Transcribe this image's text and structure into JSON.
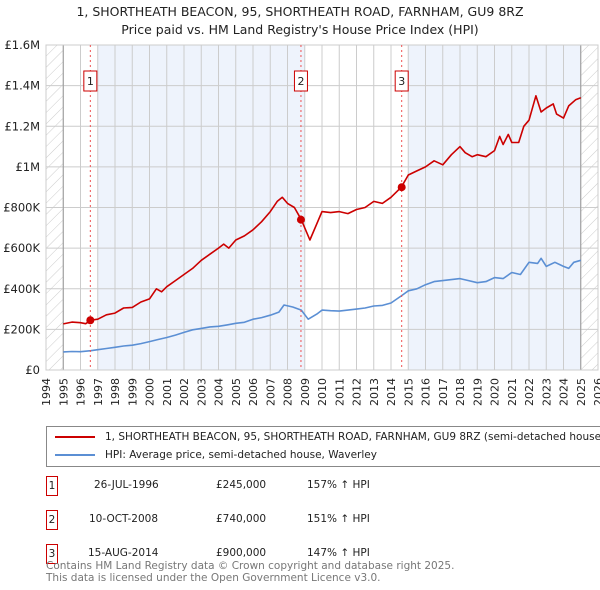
{
  "title": "1, SHORTHEATH BEACON, 95, SHORTHEATH ROAD, FARNHAM, GU9 8RZ",
  "subtitle": "Price paid vs. HM Land Registry's House Price Index (HPI)",
  "colors": {
    "property": "#cc0000",
    "hpi": "#5b8fd4",
    "band": "#eef3fc"
  },
  "chart_data": {
    "type": "line",
    "title": "Price paid vs. HM Land Registry's House Price Index (HPI)",
    "xlim": [
      1994,
      2026
    ],
    "ylim": [
      0,
      1600000
    ],
    "y_ticks": [
      {
        "v": 0,
        "label": "£0"
      },
      {
        "v": 200000,
        "label": "£200K"
      },
      {
        "v": 400000,
        "label": "£400K"
      },
      {
        "v": 600000,
        "label": "£600K"
      },
      {
        "v": 800000,
        "label": "£800K"
      },
      {
        "v": 1000000,
        "label": "£1M"
      },
      {
        "v": 1200000,
        "label": "£1.2M"
      },
      {
        "v": 1400000,
        "label": "£1.4M"
      },
      {
        "v": 1600000,
        "label": "£1.6M"
      }
    ],
    "x_ticks": [
      "1994",
      "1995",
      "1996",
      "1997",
      "1998",
      "1999",
      "2000",
      "2001",
      "2002",
      "2003",
      "2004",
      "2005",
      "2006",
      "2007",
      "2008",
      "2009",
      "2010",
      "2011",
      "2012",
      "2013",
      "2014",
      "2015",
      "2016",
      "2017",
      "2018",
      "2019",
      "2020",
      "2021",
      "2022",
      "2023",
      "2024",
      "2025",
      "2026"
    ],
    "series": [
      {
        "name": "1, SHORTHEATH BEACON, 95, SHORTHEATH ROAD, FARNHAM, GU9 8RZ (semi-detached house)",
        "color": "#cc0000",
        "x": [
          1995,
          1995.5,
          1996,
          1996.3,
          1996.6,
          1997,
          1997.5,
          1998,
          1998.5,
          1999,
          1999.5,
          2000,
          2000.4,
          2000.7,
          2001,
          2001.5,
          2002,
          2002.5,
          2003,
          2003.5,
          2004,
          2004.3,
          2004.6,
          2005,
          2005.5,
          2006,
          2006.5,
          2007,
          2007.4,
          2007.7,
          2008,
          2008.4,
          2008.8,
          2009.3,
          2009.7,
          2010,
          2010.5,
          2011,
          2011.5,
          2012,
          2012.5,
          2013,
          2013.5,
          2014,
          2014.6,
          2015,
          2015.5,
          2016,
          2016.5,
          2017,
          2017.5,
          2018,
          2018.3,
          2018.7,
          2019,
          2019.5,
          2020,
          2020.3,
          2020.5,
          2020.8,
          2021,
          2021.4,
          2021.7,
          2022,
          2022.4,
          2022.7,
          2023,
          2023.4,
          2023.6,
          2024,
          2024.3,
          2024.7,
          2025
        ],
        "y": [
          227000,
          236000,
          233000,
          228000,
          245000,
          250000,
          272000,
          280000,
          305000,
          308000,
          335000,
          350000,
          400000,
          385000,
          410000,
          440000,
          470000,
          500000,
          540000,
          570000,
          600000,
          620000,
          600000,
          640000,
          660000,
          690000,
          730000,
          780000,
          830000,
          850000,
          820000,
          800000,
          740000,
          640000,
          720000,
          780000,
          775000,
          780000,
          770000,
          790000,
          800000,
          830000,
          820000,
          850000,
          900000,
          960000,
          980000,
          1000000,
          1030000,
          1010000,
          1060000,
          1100000,
          1070000,
          1050000,
          1060000,
          1050000,
          1080000,
          1150000,
          1110000,
          1160000,
          1120000,
          1120000,
          1200000,
          1230000,
          1350000,
          1270000,
          1290000,
          1310000,
          1260000,
          1240000,
          1300000,
          1330000,
          1340000
        ]
      },
      {
        "name": "HPI: Average price, semi-detached house, Waverley",
        "color": "#5b8fd4",
        "x": [
          1995,
          1995.5,
          1996,
          1996.6,
          1997,
          1997.5,
          1998,
          1998.5,
          1999,
          1999.5,
          2000,
          2000.5,
          2001,
          2001.5,
          2002,
          2002.5,
          2003,
          2003.5,
          2004,
          2004.5,
          2005,
          2005.5,
          2006,
          2006.5,
          2007,
          2007.5,
          2007.8,
          2008.3,
          2008.8,
          2009.2,
          2009.7,
          2010,
          2010.5,
          2011,
          2011.5,
          2012,
          2012.5,
          2013,
          2013.5,
          2014,
          2014.6,
          2015,
          2015.5,
          2016,
          2016.5,
          2017,
          2017.5,
          2018,
          2018.5,
          2019,
          2019.5,
          2020,
          2020.5,
          2021,
          2021.5,
          2022,
          2022.5,
          2022.7,
          2023,
          2023.5,
          2024,
          2024.3,
          2024.6,
          2025
        ],
        "y": [
          89000,
          91000,
          90000,
          95000,
          100000,
          106000,
          112000,
          118000,
          122000,
          130000,
          140000,
          150000,
          160000,
          172000,
          185000,
          198000,
          205000,
          212000,
          215000,
          222000,
          230000,
          235000,
          250000,
          258000,
          270000,
          285000,
          320000,
          310000,
          295000,
          250000,
          275000,
          295000,
          292000,
          290000,
          295000,
          300000,
          305000,
          315000,
          318000,
          330000,
          365000,
          390000,
          400000,
          420000,
          435000,
          440000,
          445000,
          450000,
          440000,
          430000,
          435000,
          455000,
          450000,
          480000,
          470000,
          530000,
          525000,
          550000,
          510000,
          530000,
          510000,
          500000,
          530000,
          540000
        ]
      }
    ],
    "sales": [
      {
        "label": "1",
        "x": 1996.57,
        "value": 245000
      },
      {
        "label": "2",
        "x": 2008.78,
        "value": 740000
      },
      {
        "label": "3",
        "x": 2014.62,
        "value": 900000
      }
    ],
    "bands": [
      [
        1997,
        2009
      ],
      [
        2015,
        2025
      ]
    ],
    "hatched": [
      [
        1994,
        1995
      ],
      [
        2025,
        2026
      ]
    ],
    "grid": true
  },
  "legend": [
    {
      "label": "1, SHORTHEATH BEACON, 95, SHORTHEATH ROAD, FARNHAM, GU9 8RZ (semi-detached house)"
    },
    {
      "label": "HPI: Average price, semi-detached house, Waverley"
    }
  ],
  "transactions": [
    {
      "num": "1",
      "date": "26-JUL-1996",
      "price": "£245,000",
      "hpi": "157% ↑ HPI"
    },
    {
      "num": "2",
      "date": "10-OCT-2008",
      "price": "£740,000",
      "hpi": "151% ↑ HPI"
    },
    {
      "num": "3",
      "date": "15-AUG-2014",
      "price": "£900,000",
      "hpi": "147% ↑ HPI"
    }
  ],
  "footer": [
    "Contains HM Land Registry data © Crown copyright and database right 2025.",
    "This data is licensed under the Open Government Licence v3.0."
  ]
}
